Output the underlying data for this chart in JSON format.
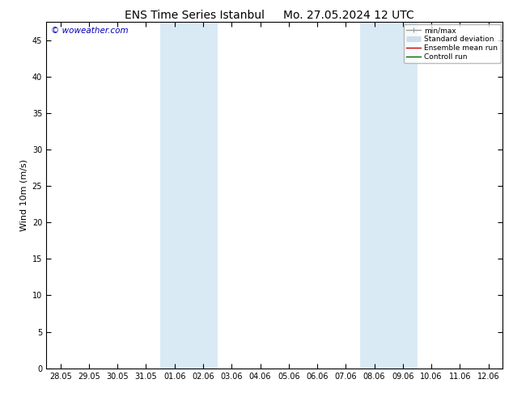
{
  "title_left": "ENS Time Series Istanbul",
  "title_right": "Mo. 27.05.2024 12 UTC",
  "ylabel": "Wind 10m (m/s)",
  "watermark": "© woweather.com",
  "xtick_labels": [
    "28.05",
    "29.05",
    "30.05",
    "31.05",
    "01.06",
    "02.06",
    "03.06",
    "04.06",
    "05.06",
    "06.06",
    "07.06",
    "08.06",
    "09.06",
    "10.06",
    "11.06",
    "12.06"
  ],
  "xtick_positions": [
    0,
    1,
    2,
    3,
    4,
    5,
    6,
    7,
    8,
    9,
    10,
    11,
    12,
    13,
    14,
    15
  ],
  "ytick_positions": [
    0,
    5,
    10,
    15,
    20,
    25,
    30,
    35,
    40,
    45
  ],
  "ylim": [
    0,
    47.5
  ],
  "xlim": [
    -0.5,
    15.5
  ],
  "shaded_bands": [
    {
      "xmin": 3.5,
      "xmax": 5.5
    },
    {
      "xmin": 10.5,
      "xmax": 12.5
    }
  ],
  "band_color": "#daeaf5",
  "background_color": "#ffffff",
  "legend_items": [
    {
      "label": "min/max",
      "color": "#999999",
      "lw": 1.0
    },
    {
      "label": "Standard deviation",
      "color": "#ccddee",
      "lw": 5
    },
    {
      "label": "Ensemble mean run",
      "color": "#cc0000",
      "lw": 1.0
    },
    {
      "label": "Controll run",
      "color": "#006600",
      "lw": 1.0
    }
  ],
  "title_fontsize": 10,
  "tick_fontsize": 7,
  "ylabel_fontsize": 8,
  "watermark_color": "#0000bb",
  "watermark_fontsize": 7.5
}
